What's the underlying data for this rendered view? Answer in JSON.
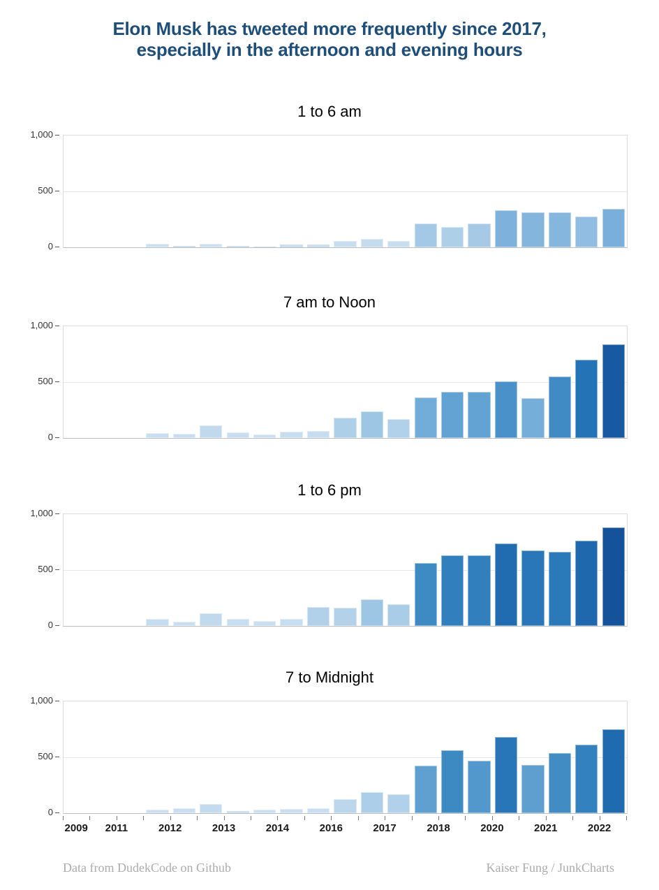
{
  "header": {
    "title_line1": "Elon Musk has tweeted more frequently since 2017,",
    "title_line2": "especially in the afternoon and evening hours",
    "title_color": "#1F4E79"
  },
  "footer": {
    "left": "Data from DudekCode on Github",
    "right": "Kaiser Fung / JunkCharts"
  },
  "colors": {
    "title": "#1F4E79",
    "footer_text": "#ABABAB",
    "plot_border": "#DCDCDC",
    "axis_line": "#BDBDBD",
    "gridline": "#E6E6E6",
    "tick": "#777777",
    "bar_min": "#CEE1F2",
    "bar_max": "#114486"
  },
  "chart_data": {
    "type": "bar",
    "layout": "small_multiples_4_rows",
    "title": "Elon Musk tweets per half-year period by time of day",
    "ylim": [
      0,
      1000
    ],
    "grid": true,
    "slots": 21,
    "first_slot": 3,
    "panels": [
      {
        "title": "1 to 6 am",
        "values": [
          30,
          10,
          30,
          10,
          5,
          25,
          25,
          55,
          75,
          55,
          215,
          180,
          210,
          330,
          315,
          310,
          275,
          345
        ]
      },
      {
        "title": "7 am to Noon",
        "values": [
          45,
          40,
          110,
          50,
          30,
          55,
          60,
          180,
          235,
          170,
          365,
          410,
          410,
          505,
          355,
          550,
          700,
          840
        ]
      },
      {
        "title": "1 to 6 pm",
        "values": [
          65,
          40,
          110,
          60,
          45,
          60,
          170,
          160,
          235,
          195,
          560,
          630,
          630,
          735,
          675,
          665,
          760,
          880
        ]
      },
      {
        "title": "7 to Midnight",
        "values": [
          30,
          45,
          80,
          20,
          30,
          40,
          45,
          125,
          185,
          170,
          425,
          565,
          470,
          680,
          430,
          540,
          615,
          750
        ]
      }
    ],
    "y_axis": {
      "ticks": [
        {
          "label": "0",
          "value": 0
        },
        {
          "label": "500",
          "value": 500
        },
        {
          "label": "1,000",
          "value": 1000
        }
      ]
    },
    "x_axis": {
      "tick_boundaries": 22,
      "labels": [
        {
          "text": "2009",
          "slot_boundary": 0.5
        },
        {
          "text": "2011",
          "slot_boundary": 2
        },
        {
          "text": "2012",
          "slot_boundary": 4
        },
        {
          "text": "2013",
          "slot_boundary": 6
        },
        {
          "text": "2014",
          "slot_boundary": 8
        },
        {
          "text": "2016",
          "slot_boundary": 10
        },
        {
          "text": "2017",
          "slot_boundary": 12
        },
        {
          "text": "2018",
          "slot_boundary": 14
        },
        {
          "text": "2020",
          "slot_boundary": 16
        },
        {
          "text": "2021",
          "slot_boundary": 18
        },
        {
          "text": "2022",
          "slot_boundary": 20
        }
      ]
    },
    "palette_stops": [
      [
        0,
        "#CEE1F2"
      ],
      [
        100,
        "#C2DAEE"
      ],
      [
        200,
        "#A9CCE7"
      ],
      [
        300,
        "#88B8DF"
      ],
      [
        400,
        "#66A5D4"
      ],
      [
        500,
        "#4A92C8"
      ],
      [
        600,
        "#3684BF"
      ],
      [
        700,
        "#2473B6"
      ],
      [
        800,
        "#1B60A8"
      ],
      [
        900,
        "#154F97"
      ],
      [
        1000,
        "#114486"
      ]
    ]
  }
}
